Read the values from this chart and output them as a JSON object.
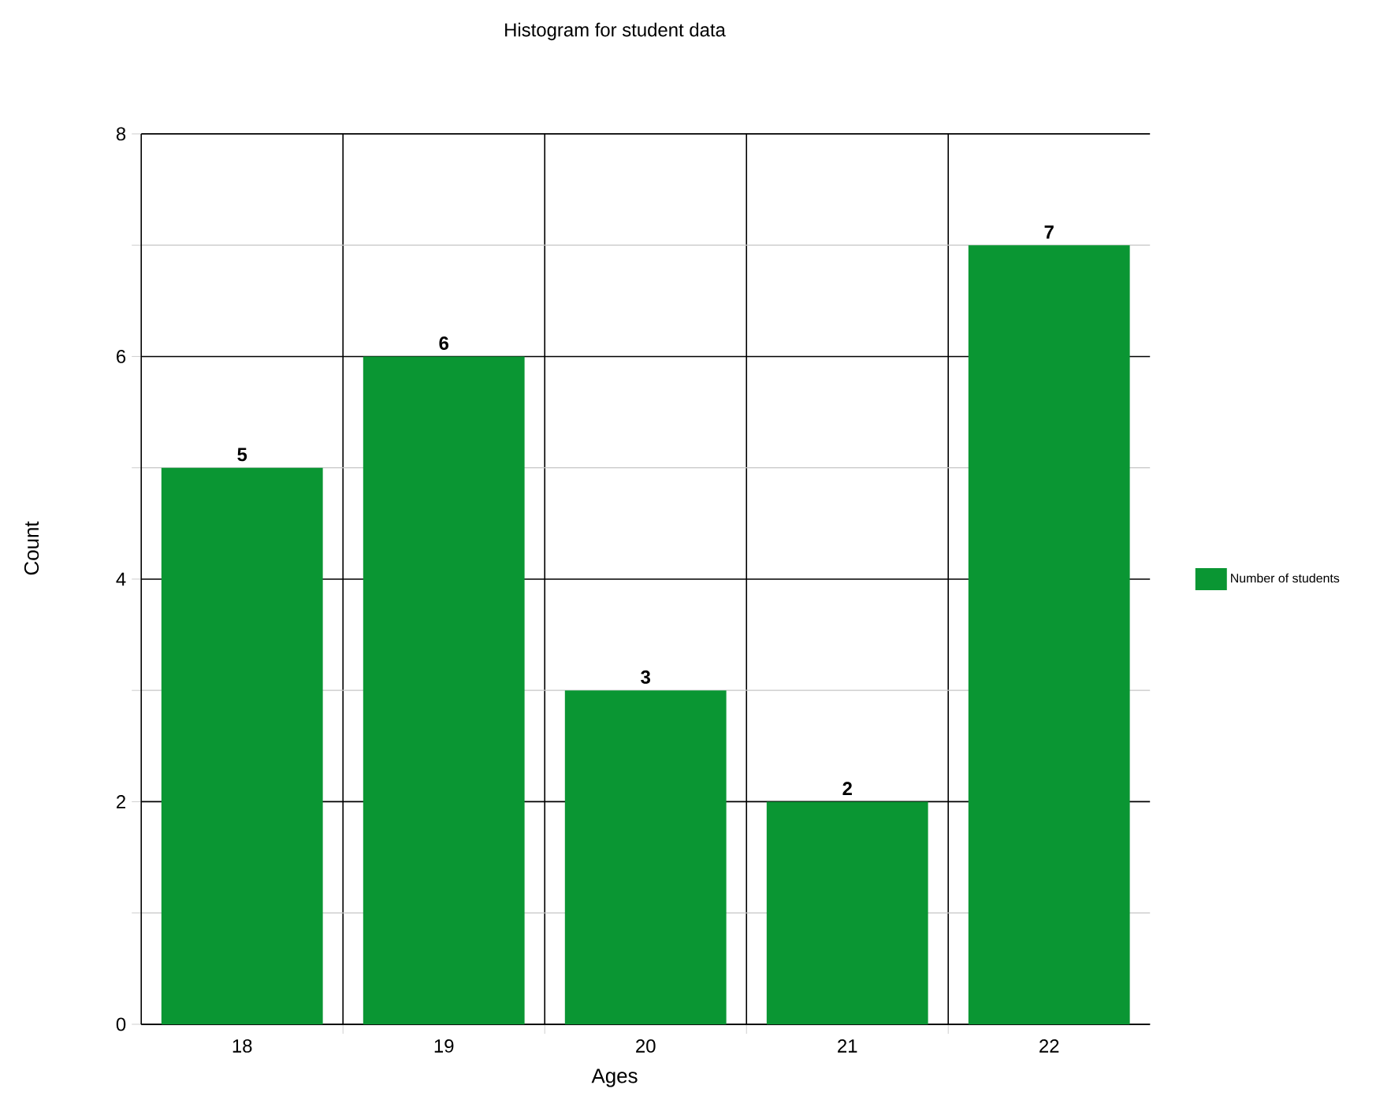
{
  "chart_data": {
    "type": "bar",
    "title": "Histogram for student data",
    "xlabel": "Ages",
    "ylabel": "Count",
    "categories": [
      "18",
      "19",
      "20",
      "21",
      "22"
    ],
    "series": [
      {
        "name": "Number of students",
        "color": "#0a9633",
        "values": [
          5,
          6,
          3,
          2,
          7
        ]
      }
    ],
    "ylim": [
      0,
      8
    ],
    "yticks": [
      0,
      2,
      4,
      6,
      8
    ],
    "grid": true,
    "legend": "right",
    "data_labels": true
  }
}
